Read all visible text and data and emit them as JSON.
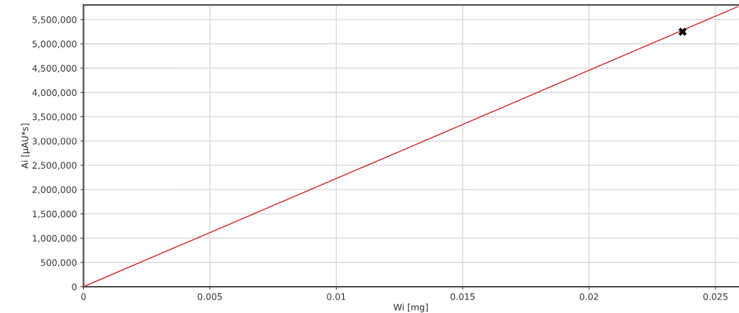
{
  "chart_data": {
    "type": "scatter",
    "xlabel": "Wi [mg]",
    "ylabel": "Ai [µAU*s]",
    "xlim": [
      0,
      0.0259
    ],
    "ylim": [
      0,
      5800000
    ],
    "xticks": [
      0,
      0.005,
      0.01,
      0.015,
      0.02,
      0.025
    ],
    "yticks": [
      0,
      {
        "value": 500000,
        "label": "500,000"
      },
      {
        "value": 1000000,
        "label": "1,000,000"
      },
      {
        "value": 1500000,
        "label": "1,500,000"
      },
      {
        "value": 2000000,
        "label": "2,000,000"
      },
      {
        "value": 2500000,
        "label": "2,500,000"
      },
      {
        "value": 3000000,
        "label": "3,000,000"
      },
      {
        "value": 3500000,
        "label": "3,500,000"
      },
      {
        "value": 4000000,
        "label": "4,000,000"
      },
      {
        "value": 4500000,
        "label": "4,500,000"
      },
      {
        "value": 5000000,
        "label": "5,000,000"
      },
      {
        "value": 5500000,
        "label": "5,500,000"
      }
    ],
    "grid": true,
    "legend": false,
    "series": [
      {
        "type": "line",
        "color": "#cc2020",
        "x": [
          0,
          0.0259
        ],
        "values": [
          0,
          5770000
        ],
        "marker": "none",
        "line_style": "solid"
      },
      {
        "color": "#000000",
        "x": [
          0.0237
        ],
        "values": [
          5250000
        ],
        "marker": "cross"
      }
    ]
  }
}
